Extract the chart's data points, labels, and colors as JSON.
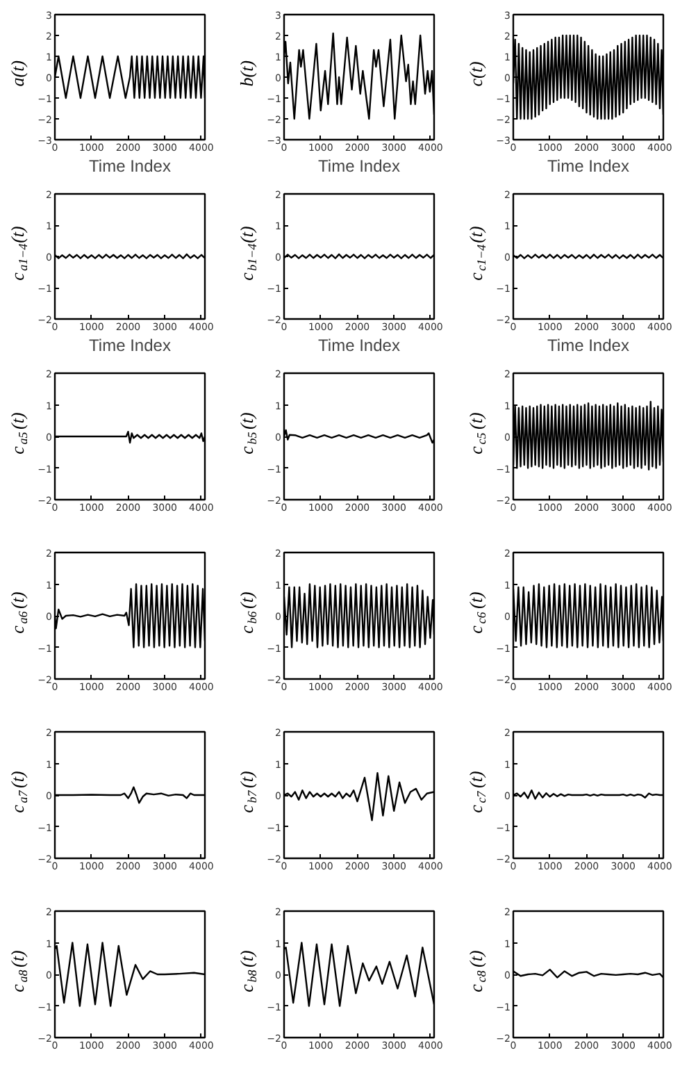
{
  "chart_data": [
    {
      "type": "line",
      "ylabel": "a(t)",
      "xlabel": "Time Index",
      "color": "#000000",
      "xlim": [
        0,
        4096
      ],
      "xticks": [
        0,
        1000,
        2000,
        3000,
        4000
      ],
      "ylim": [
        -3,
        3
      ],
      "yticks": [
        {
          "value": -3,
          "label": "−3"
        },
        {
          "value": -2,
          "label": "−2"
        },
        {
          "value": -1,
          "label": "−1"
        },
        0,
        1,
        2,
        3
      ],
      "x": [
        0,
        100,
        300,
        500,
        700,
        900,
        1100,
        1300,
        1500,
        1720,
        1930,
        2048,
        2100,
        2170,
        2240,
        2310,
        2380,
        2450,
        2520,
        2590,
        2660,
        2730,
        2800,
        2870,
        2940,
        3010,
        3080,
        3150,
        3220,
        3290,
        3360,
        3430,
        3500,
        3570,
        3640,
        3710,
        3780,
        3850,
        3920,
        3990,
        4060,
        4096
      ],
      "values": [
        0,
        1,
        -1,
        1,
        -1,
        1,
        -1,
        1,
        -1,
        1,
        -1,
        0,
        1,
        -1,
        1,
        -1,
        1,
        -1,
        1,
        -1,
        1,
        -1,
        1,
        -1,
        1,
        -1,
        1,
        -1,
        1,
        -1,
        1,
        -1,
        1,
        -1,
        1,
        -1,
        1,
        -1,
        1,
        -1,
        1,
        -1
      ]
    },
    {
      "type": "line",
      "ylabel": "b(t)",
      "xlabel": "Time Index",
      "color": "#000000",
      "xlim": [
        0,
        4096
      ],
      "xticks": [
        0,
        1000,
        2000,
        3000,
        4000
      ],
      "ylim": [
        -3,
        3
      ],
      "yticks": [
        {
          "value": -3,
          "label": "−3"
        },
        {
          "value": -2,
          "label": "−2"
        },
        {
          "value": -1,
          "label": "−1"
        },
        0,
        1,
        2,
        3
      ],
      "x": [
        0,
        40,
        110,
        170,
        280,
        410,
        460,
        520,
        690,
        880,
        1000,
        1120,
        1200,
        1340,
        1450,
        1500,
        1560,
        1720,
        1850,
        1960,
        2080,
        2150,
        2320,
        2450,
        2510,
        2580,
        2720,
        2900,
        3020,
        3200,
        3330,
        3390,
        3460,
        3520,
        3580,
        3720,
        3850,
        3920,
        3980,
        4040,
        4096
      ],
      "values": [
        1.0,
        1.7,
        -0.3,
        0.7,
        -2.0,
        1.3,
        0.5,
        1.3,
        -2.0,
        1.6,
        -1.6,
        0.3,
        -1.3,
        2.1,
        -1.3,
        0.0,
        -1.3,
        1.9,
        -0.6,
        1.5,
        -0.8,
        0.3,
        -2.0,
        1.3,
        0.5,
        1.3,
        -1.4,
        1.8,
        -2.0,
        2.0,
        -0.2,
        0.6,
        -1.3,
        -0.2,
        -1.3,
        2.0,
        -0.8,
        0.3,
        -0.7,
        0.3,
        -1.8
      ]
    },
    {
      "type": "line",
      "ylabel": "c(t)",
      "xlabel": "Time Index",
      "color": "#000000",
      "xlim": [
        0,
        4096
      ],
      "xticks": [
        0,
        1000,
        2000,
        3000,
        4000
      ],
      "ylim": [
        -3,
        3
      ],
      "yticks": [
        {
          "value": -3,
          "label": "−3"
        },
        {
          "value": -2,
          "label": "−2"
        },
        {
          "value": -1,
          "label": "−1"
        },
        0,
        1,
        2,
        3
      ],
      "x": [
        0,
        50,
        100,
        150,
        200,
        250,
        300,
        350,
        400,
        450,
        500,
        550,
        600,
        650,
        700,
        750,
        800,
        850,
        900,
        950,
        1000,
        1050,
        1100,
        1150,
        1200,
        1250,
        1300,
        1350,
        1400,
        1450,
        1500,
        1550,
        1600,
        1650,
        1700,
        1750,
        1800,
        1850,
        1900,
        1950,
        2000,
        2050,
        2100,
        2150,
        2200,
        2250,
        2300,
        2350,
        2400,
        2450,
        2500,
        2550,
        2600,
        2650,
        2700,
        2750,
        2800,
        2850,
        2900,
        2950,
        3000,
        3050,
        3100,
        3150,
        3200,
        3250,
        3300,
        3350,
        3400,
        3450,
        3500,
        3550,
        3600,
        3650,
        3700,
        3750,
        3800,
        3850,
        3900,
        3950,
        4000,
        4050,
        4096
      ],
      "values": [
        -0.3,
        1.8,
        -2.0,
        1.6,
        -2.0,
        1.4,
        -2.0,
        1.3,
        -2.0,
        1.2,
        -2.0,
        1.3,
        -1.9,
        1.4,
        -1.8,
        1.5,
        -1.6,
        1.6,
        -1.5,
        1.7,
        -1.3,
        1.8,
        -1.2,
        1.9,
        -1.1,
        1.9,
        -1.0,
        2.0,
        -1.0,
        2.0,
        -1.0,
        2.0,
        -1.1,
        2.0,
        -1.2,
        2.0,
        -1.4,
        1.9,
        -1.5,
        1.7,
        -1.7,
        1.5,
        -1.8,
        1.3,
        -1.9,
        1.1,
        -2.0,
        1.0,
        -2.0,
        1.0,
        -2.0,
        1.1,
        -2.0,
        1.2,
        -2.0,
        1.3,
        -1.9,
        1.5,
        -1.8,
        1.6,
        -1.7,
        1.7,
        -1.5,
        1.8,
        -1.3,
        1.9,
        -1.2,
        2.0,
        -1.1,
        2.0,
        -1.0,
        2.0,
        -1.0,
        2.0,
        -1.1,
        1.9,
        -1.2,
        1.8,
        -1.3,
        1.6,
        -1.5,
        1.3,
        -1.8
      ]
    },
    {
      "type": "line",
      "ylabel": "c$_{a1−4}$(t)",
      "xlabel": "Time Index",
      "color": "#000000",
      "xlim": [
        0,
        4096
      ],
      "xticks": [
        0,
        1000,
        2000,
        3000,
        4000
      ],
      "ylim": [
        -2,
        2
      ],
      "yticks": [
        {
          "value": -2,
          "label": "−2"
        },
        {
          "value": -1,
          "label": "−1"
        },
        0,
        1,
        2
      ],
      "x": [
        0,
        100,
        200,
        300,
        400,
        500,
        600,
        700,
        800,
        900,
        1000,
        1100,
        1200,
        1300,
        1400,
        1500,
        1600,
        1700,
        1800,
        1900,
        2000,
        2100,
        2200,
        2300,
        2400,
        2500,
        2600,
        2700,
        2800,
        2900,
        3000,
        3100,
        3200,
        3300,
        3400,
        3500,
        3600,
        3700,
        3800,
        3900,
        4000,
        4096
      ],
      "values": [
        0.05,
        -0.06,
        0.04,
        -0.05,
        0.06,
        -0.04,
        0.05,
        -0.06,
        0.05,
        -0.05,
        0.04,
        -0.06,
        0.05,
        -0.05,
        0.06,
        -0.04,
        0.05,
        -0.05,
        0.04,
        -0.06,
        0.05,
        -0.05,
        0.06,
        -0.05,
        0.04,
        -0.06,
        0.05,
        -0.04,
        0.05,
        -0.06,
        0.04,
        -0.05,
        0.06,
        -0.05,
        0.05,
        -0.06,
        0.07,
        -0.05,
        0.04,
        -0.06,
        0.05,
        -0.05
      ]
    },
    {
      "type": "line",
      "ylabel": "c$_{b1−4}$(t)",
      "xlabel": "Time Index",
      "color": "#000000",
      "xlim": [
        0,
        4096
      ],
      "xticks": [
        0,
        1000,
        2000,
        3000,
        4000
      ],
      "ylim": [
        -2,
        2
      ],
      "yticks": [
        {
          "value": -2,
          "label": "−2"
        },
        {
          "value": -1,
          "label": "−1"
        },
        0,
        1,
        2
      ],
      "x": [
        0,
        100,
        200,
        300,
        400,
        500,
        600,
        700,
        800,
        900,
        1000,
        1100,
        1200,
        1300,
        1400,
        1500,
        1600,
        1700,
        1800,
        1900,
        2000,
        2100,
        2200,
        2300,
        2400,
        2500,
        2600,
        2700,
        2800,
        2900,
        3000,
        3100,
        3200,
        3300,
        3400,
        3500,
        3600,
        3700,
        3800,
        3900,
        4000,
        4096
      ],
      "values": [
        -0.05,
        0.06,
        -0.04,
        0.05,
        -0.06,
        0.04,
        -0.05,
        0.06,
        -0.05,
        0.05,
        -0.04,
        0.06,
        -0.05,
        0.05,
        -0.06,
        0.07,
        -0.05,
        0.05,
        -0.04,
        0.06,
        -0.05,
        0.05,
        -0.06,
        0.05,
        -0.04,
        0.06,
        -0.05,
        0.04,
        -0.05,
        0.06,
        -0.04,
        0.05,
        -0.06,
        0.05,
        -0.05,
        0.06,
        -0.05,
        0.05,
        -0.04,
        0.06,
        -0.05,
        0.05
      ]
    },
    {
      "type": "line",
      "ylabel": "c$_{c1−4}$(t)",
      "xlabel": "Time Index",
      "color": "#000000",
      "xlim": [
        0,
        4096
      ],
      "xticks": [
        0,
        1000,
        2000,
        3000,
        4000
      ],
      "ylim": [
        -2,
        2
      ],
      "yticks": [
        {
          "value": -2,
          "label": "−2"
        },
        {
          "value": -1,
          "label": "−1"
        },
        0,
        1,
        2
      ],
      "x": [
        0,
        100,
        200,
        300,
        400,
        500,
        600,
        700,
        800,
        900,
        1000,
        1100,
        1200,
        1300,
        1400,
        1500,
        1600,
        1700,
        1800,
        1900,
        2000,
        2100,
        2200,
        2300,
        2400,
        2500,
        2600,
        2700,
        2800,
        2900,
        3000,
        3100,
        3200,
        3300,
        3400,
        3500,
        3600,
        3700,
        3800,
        3900,
        4000,
        4096
      ],
      "values": [
        0.04,
        -0.05,
        0.05,
        -0.06,
        0.04,
        -0.05,
        0.06,
        -0.04,
        0.05,
        -0.05,
        0.06,
        -0.05,
        0.05,
        -0.06,
        0.05,
        -0.04,
        0.05,
        -0.06,
        0.04,
        -0.05,
        0.05,
        -0.06,
        0.06,
        -0.05,
        0.05,
        -0.04,
        0.06,
        -0.05,
        0.05,
        -0.06,
        0.04,
        -0.05,
        0.05,
        -0.06,
        0.06,
        -0.05,
        0.05,
        -0.04,
        0.06,
        -0.05,
        0.05,
        -0.05
      ]
    },
    {
      "type": "line",
      "ylabel": "c$_{a5}$(t)",
      "color": "#000000",
      "xlim": [
        0,
        4096
      ],
      "xticks": [
        0,
        1000,
        2000,
        3000,
        4000
      ],
      "ylim": [
        -2,
        2
      ],
      "yticks": [
        {
          "value": -2,
          "label": "−2"
        },
        {
          "value": -1,
          "label": "−1"
        },
        0,
        1,
        2
      ],
      "x": [
        0,
        500,
        1000,
        1500,
        1950,
        2000,
        2050,
        2100,
        2150,
        2250,
        2350,
        2450,
        2550,
        2650,
        2750,
        2850,
        2950,
        3050,
        3150,
        3250,
        3350,
        3450,
        3550,
        3650,
        3750,
        3850,
        3950,
        4000,
        4050,
        4096
      ],
      "values": [
        0,
        0,
        0,
        0,
        0,
        0.15,
        -0.2,
        0.1,
        -0.05,
        0.05,
        -0.05,
        0.05,
        -0.05,
        0.05,
        -0.05,
        0.05,
        -0.05,
        0.05,
        -0.05,
        0.05,
        -0.05,
        0.05,
        -0.05,
        0.05,
        -0.05,
        0.05,
        -0.05,
        0.1,
        -0.15,
        0
      ]
    },
    {
      "type": "line",
      "ylabel": "c$_{b5}$(t)",
      "color": "#000000",
      "xlim": [
        0,
        4096
      ],
      "xticks": [
        0,
        1000,
        2000,
        3000,
        4000
      ],
      "ylim": [
        -2,
        2
      ],
      "yticks": [
        {
          "value": -2,
          "label": "−2"
        },
        {
          "value": -1,
          "label": "−1"
        },
        0,
        1,
        2
      ],
      "x": [
        0,
        50,
        100,
        150,
        300,
        500,
        700,
        900,
        1100,
        1300,
        1500,
        1700,
        1900,
        2100,
        2300,
        2500,
        2700,
        2900,
        3100,
        3300,
        3500,
        3700,
        3900,
        3950,
        4050,
        4096
      ],
      "values": [
        0,
        0.2,
        -0.1,
        0.05,
        0.04,
        -0.04,
        0.04,
        -0.04,
        0.04,
        -0.04,
        0.04,
        -0.04,
        0.04,
        -0.04,
        0.04,
        -0.04,
        0.04,
        -0.04,
        0.04,
        -0.04,
        0.04,
        -0.04,
        0.04,
        0.1,
        -0.2,
        -0.1
      ]
    },
    {
      "type": "line",
      "ylabel": "c$_{c5}$(t)",
      "color": "#000000",
      "xlim": [
        0,
        4096
      ],
      "xticks": [
        0,
        1000,
        2000,
        3000,
        4000
      ],
      "ylim": [
        -2,
        2
      ],
      "yticks": [
        {
          "value": -2,
          "label": "−2"
        },
        {
          "value": -1,
          "label": "−1"
        },
        0,
        1,
        2
      ],
      "x": [
        0,
        50,
        100,
        150,
        200,
        250,
        300,
        350,
        400,
        450,
        500,
        550,
        600,
        650,
        700,
        750,
        800,
        850,
        900,
        950,
        1000,
        1050,
        1100,
        1150,
        1200,
        1250,
        1300,
        1350,
        1400,
        1450,
        1500,
        1550,
        1600,
        1650,
        1700,
        1750,
        1800,
        1850,
        1900,
        1950,
        2000,
        2050,
        2100,
        2150,
        2200,
        2250,
        2300,
        2350,
        2400,
        2450,
        2500,
        2550,
        2600,
        2650,
        2700,
        2750,
        2800,
        2850,
        2900,
        2950,
        3000,
        3050,
        3100,
        3150,
        3200,
        3250,
        3300,
        3350,
        3400,
        3450,
        3500,
        3550,
        3600,
        3650,
        3700,
        3750,
        3800,
        3850,
        3900,
        3950,
        4000,
        4050,
        4096
      ],
      "values": [
        -0.9,
        0.95,
        -1.0,
        0.9,
        -0.95,
        0.95,
        -0.9,
        0.9,
        -1.0,
        0.95,
        -0.95,
        0.9,
        -0.9,
        0.95,
        -0.95,
        1.0,
        -1.0,
        0.95,
        -0.9,
        1.0,
        -0.95,
        0.95,
        -1.0,
        1.0,
        -0.9,
        0.95,
        -0.95,
        1.0,
        -1.0,
        0.95,
        -0.9,
        1.0,
        -0.95,
        0.95,
        -0.9,
        1.0,
        -1.0,
        0.95,
        -0.95,
        1.0,
        -0.9,
        1.05,
        -1.0,
        0.95,
        -0.95,
        1.0,
        -0.9,
        0.95,
        -1.0,
        1.0,
        -0.95,
        0.95,
        -0.9,
        1.0,
        -1.0,
        0.95,
        -0.95,
        1.05,
        -0.9,
        0.95,
        -1.0,
        1.0,
        -0.95,
        0.9,
        -0.9,
        0.95,
        -1.0,
        0.9,
        -0.95,
        0.95,
        -1.0,
        0.9,
        -0.9,
        0.95,
        -1.05,
        1.1,
        -0.95,
        0.9,
        -1.0,
        0.95,
        -0.9,
        0.85,
        -0.8
      ]
    },
    {
      "type": "line",
      "ylabel": "c$_{a6}$(t)",
      "color": "#000000",
      "xlim": [
        0,
        4096
      ],
      "xticks": [
        0,
        1000,
        2000,
        3000,
        4000
      ],
      "ylim": [
        -2,
        2
      ],
      "yticks": [
        {
          "value": -2,
          "label": "−2"
        },
        {
          "value": -1,
          "label": "−1"
        },
        0,
        1,
        2
      ],
      "x": [
        0,
        30,
        100,
        200,
        300,
        500,
        700,
        900,
        1100,
        1300,
        1500,
        1700,
        1900,
        1950,
        2020,
        2080,
        2150,
        2220,
        2290,
        2360,
        2430,
        2500,
        2570,
        2640,
        2710,
        2780,
        2850,
        2920,
        2990,
        3060,
        3130,
        3200,
        3270,
        3340,
        3410,
        3480,
        3550,
        3620,
        3690,
        3760,
        3830,
        3900,
        3970,
        4040,
        4096
      ],
      "values": [
        0,
        -0.4,
        0.2,
        -0.1,
        0.0,
        0.02,
        -0.03,
        0.03,
        -0.02,
        0.05,
        -0.02,
        0.03,
        0.0,
        0.1,
        -0.3,
        0.85,
        -1.0,
        1.0,
        -0.95,
        0.95,
        -1.0,
        0.95,
        -0.95,
        1.0,
        -1.0,
        0.95,
        -0.95,
        1.0,
        -1.0,
        0.95,
        -0.95,
        1.0,
        -1.0,
        0.95,
        -0.95,
        1.0,
        -1.0,
        0.95,
        -0.95,
        1.0,
        -1.0,
        0.95,
        -1.0,
        0.85,
        -0.8
      ]
    },
    {
      "type": "line",
      "ylabel": "c$_{b6}$(t)",
      "color": "#000000",
      "xlim": [
        0,
        4096
      ],
      "xticks": [
        0,
        1000,
        2000,
        3000,
        4000
      ],
      "ylim": [
        -2,
        2
      ],
      "yticks": [
        {
          "value": -2,
          "label": "−2"
        },
        {
          "value": -1,
          "label": "−1"
        },
        0,
        1,
        2
      ],
      "x": [
        0,
        70,
        140,
        210,
        280,
        350,
        420,
        490,
        560,
        630,
        700,
        770,
        840,
        910,
        980,
        1050,
        1120,
        1190,
        1260,
        1330,
        1400,
        1470,
        1540,
        1610,
        1680,
        1750,
        1820,
        1890,
        1960,
        2030,
        2100,
        2170,
        2240,
        2310,
        2380,
        2450,
        2520,
        2590,
        2660,
        2730,
        2800,
        2870,
        2940,
        3010,
        3080,
        3150,
        3220,
        3290,
        3360,
        3430,
        3500,
        3570,
        3640,
        3710,
        3780,
        3850,
        3920,
        3990,
        4060,
        4096
      ],
      "values": [
        0.6,
        -0.6,
        0.9,
        -1.0,
        0.9,
        -0.8,
        0.9,
        -0.85,
        0.7,
        -0.9,
        1.0,
        -0.8,
        0.95,
        -1.0,
        0.9,
        -0.95,
        0.95,
        -0.9,
        1.0,
        -0.95,
        0.95,
        -1.0,
        1.0,
        -0.95,
        0.95,
        -1.0,
        0.9,
        -0.95,
        1.0,
        -1.0,
        0.95,
        -0.95,
        1.0,
        -1.0,
        0.95,
        -0.95,
        0.9,
        -1.0,
        0.95,
        -0.95,
        1.0,
        -1.0,
        0.9,
        -0.95,
        0.95,
        -1.0,
        0.9,
        -0.95,
        1.0,
        -1.0,
        0.9,
        -0.95,
        0.95,
        -1.0,
        0.8,
        -0.9,
        0.6,
        -0.7,
        0.5,
        -0.6
      ]
    },
    {
      "type": "line",
      "ylabel": "c$_{c6}$(t)",
      "color": "#000000",
      "xlim": [
        0,
        4096
      ],
      "xticks": [
        0,
        1000,
        2000,
        3000,
        4000
      ],
      "ylim": [
        -2,
        2
      ],
      "yticks": [
        {
          "value": -2,
          "label": "−2"
        },
        {
          "value": -1,
          "label": "−1"
        },
        0,
        1,
        2
      ],
      "x": [
        0,
        70,
        140,
        210,
        280,
        350,
        420,
        490,
        560,
        630,
        700,
        770,
        840,
        910,
        980,
        1050,
        1120,
        1190,
        1260,
        1330,
        1400,
        1470,
        1540,
        1610,
        1680,
        1750,
        1820,
        1890,
        1960,
        2030,
        2100,
        2170,
        2240,
        2310,
        2380,
        2450,
        2520,
        2590,
        2660,
        2730,
        2800,
        2870,
        2940,
        3010,
        3080,
        3150,
        3220,
        3290,
        3360,
        3430,
        3500,
        3570,
        3640,
        3710,
        3780,
        3850,
        3920,
        3990,
        4060,
        4096
      ],
      "values": [
        0.85,
        -0.8,
        0.9,
        -0.95,
        0.9,
        -0.9,
        0.75,
        -0.85,
        0.95,
        -0.9,
        1.0,
        -0.95,
        0.9,
        -1.0,
        0.95,
        -0.95,
        1.0,
        -1.0,
        0.95,
        -0.95,
        1.0,
        -1.0,
        0.95,
        -0.95,
        1.0,
        -1.0,
        0.95,
        -0.95,
        1.0,
        -1.0,
        0.95,
        -0.95,
        0.9,
        -1.0,
        1.0,
        -0.95,
        0.95,
        -1.0,
        0.9,
        -0.95,
        1.0,
        -1.0,
        0.95,
        -0.95,
        0.9,
        -1.0,
        0.95,
        -0.95,
        1.0,
        -1.0,
        0.9,
        -0.95,
        0.95,
        -1.0,
        0.9,
        -0.9,
        0.8,
        -0.85,
        0.6,
        -0.8
      ]
    },
    {
      "type": "line",
      "ylabel": "c$_{a7}$(t)",
      "color": "#000000",
      "xlim": [
        0,
        4096
      ],
      "xticks": [
        0,
        1000,
        2000,
        3000,
        4000
      ],
      "ylim": [
        -2,
        2
      ],
      "yticks": [
        {
          "value": -2,
          "label": "−2"
        },
        {
          "value": -1,
          "label": "−1"
        },
        0,
        1,
        2
      ],
      "x": [
        0,
        500,
        1000,
        1500,
        1800,
        1900,
        2000,
        2080,
        2150,
        2230,
        2300,
        2400,
        2500,
        2700,
        2900,
        3100,
        3300,
        3500,
        3600,
        3700,
        3800,
        4096
      ],
      "values": [
        0,
        0,
        0.01,
        0,
        0,
        0.05,
        -0.1,
        0.05,
        0.25,
        0.0,
        -0.25,
        -0.05,
        0.05,
        0.02,
        0.05,
        -0.02,
        0.02,
        0.0,
        -0.1,
        0.05,
        0.0,
        0.0
      ]
    },
    {
      "type": "line",
      "ylabel": "c$_{b7}$(t)",
      "color": "#000000",
      "xlim": [
        0,
        4096
      ],
      "xticks": [
        0,
        1000,
        2000,
        3000,
        4000
      ],
      "ylim": [
        -2,
        2
      ],
      "yticks": [
        {
          "value": -2,
          "label": "−2"
        },
        {
          "value": -1,
          "label": "−1"
        },
        0,
        1,
        2
      ],
      "x": [
        0,
        100,
        200,
        300,
        400,
        500,
        600,
        700,
        800,
        900,
        1000,
        1100,
        1200,
        1300,
        1400,
        1500,
        1600,
        1700,
        1800,
        1900,
        2000,
        2200,
        2400,
        2550,
        2700,
        2850,
        3000,
        3150,
        3300,
        3450,
        3600,
        3750,
        3900,
        4096
      ],
      "values": [
        0,
        0.05,
        -0.05,
        0.1,
        -0.15,
        0.15,
        -0.1,
        0.1,
        -0.05,
        0.05,
        -0.05,
        0.05,
        -0.05,
        0.05,
        -0.05,
        0.1,
        -0.1,
        0.05,
        -0.05,
        0.15,
        -0.2,
        0.55,
        -0.8,
        0.7,
        -0.65,
        0.6,
        -0.5,
        0.4,
        -0.25,
        0.1,
        0.2,
        -0.15,
        0.05,
        0.1
      ]
    },
    {
      "type": "line",
      "ylabel": "c$_{c7}$(t)",
      "color": "#000000",
      "xlim": [
        0,
        4096
      ],
      "xticks": [
        0,
        1000,
        2000,
        3000,
        4000
      ],
      "ylim": [
        -2,
        2
      ],
      "yticks": [
        {
          "value": -2,
          "label": "−2"
        },
        {
          "value": -1,
          "label": "−1"
        },
        0,
        1,
        2
      ],
      "x": [
        0,
        100,
        200,
        300,
        400,
        500,
        600,
        700,
        800,
        900,
        1000,
        1100,
        1200,
        1300,
        1400,
        1500,
        1600,
        1700,
        1800,
        1900,
        2000,
        2100,
        2200,
        2300,
        2400,
        2500,
        2600,
        2700,
        2800,
        2900,
        3000,
        3100,
        3200,
        3300,
        3400,
        3500,
        3600,
        3700,
        3800,
        3900,
        4000,
        4096
      ],
      "values": [
        0,
        0.05,
        -0.05,
        0.08,
        -0.1,
        0.15,
        -0.12,
        0.08,
        -0.08,
        0.06,
        -0.05,
        0.04,
        -0.04,
        0.03,
        -0.03,
        0.02,
        0,
        0,
        0,
        0,
        0.02,
        -0.02,
        0.02,
        -0.02,
        0.02,
        0,
        0,
        0,
        0,
        0,
        0.02,
        -0.02,
        0.02,
        -0.02,
        0.02,
        0,
        -0.08,
        0.05,
        0,
        0.02,
        0,
        0
      ]
    },
    {
      "type": "line",
      "ylabel": "c$_{a8}$(t)",
      "color": "#000000",
      "xlim": [
        0,
        4096
      ],
      "xticks": [
        0,
        1000,
        2000,
        3000,
        4000
      ],
      "ylim": [
        -2,
        2
      ],
      "yticks": [
        {
          "value": -2,
          "label": "−2"
        },
        {
          "value": -1,
          "label": "−1"
        },
        0,
        1,
        2
      ],
      "x": [
        0,
        50,
        250,
        480,
        680,
        890,
        1100,
        1300,
        1520,
        1740,
        1960,
        2200,
        2400,
        2600,
        2800,
        3000,
        3400,
        3800,
        4096
      ],
      "values": [
        0.8,
        0.9,
        -0.9,
        1.0,
        -1.0,
        0.95,
        -0.95,
        1.0,
        -1.0,
        0.9,
        -0.65,
        0.3,
        -0.15,
        0.1,
        0.0,
        0.0,
        0.02,
        0.05,
        0.0
      ]
    },
    {
      "type": "line",
      "ylabel": "c$_{b8}$(t)",
      "color": "#000000",
      "xlim": [
        0,
        4096
      ],
      "xticks": [
        0,
        1000,
        2000,
        3000,
        4000
      ],
      "ylim": [
        -2,
        2
      ],
      "yticks": [
        {
          "value": -2,
          "label": "−2"
        },
        {
          "value": -1,
          "label": "−1"
        },
        0,
        1,
        2
      ],
      "x": [
        0,
        50,
        250,
        480,
        680,
        890,
        1100,
        1300,
        1520,
        1740,
        1960,
        2150,
        2320,
        2520,
        2680,
        2880,
        3100,
        3350,
        3580,
        3780,
        4096
      ],
      "values": [
        0.8,
        0.85,
        -0.9,
        1.0,
        -1.0,
        0.95,
        -0.95,
        0.95,
        -1.0,
        0.9,
        -0.6,
        0.35,
        -0.2,
        0.25,
        -0.3,
        0.4,
        -0.45,
        0.6,
        -0.7,
        0.85,
        -0.95
      ]
    },
    {
      "type": "line",
      "ylabel": "c$_{c8}$(t)",
      "color": "#000000",
      "xlim": [
        0,
        4096
      ],
      "xticks": [
        0,
        1000,
        2000,
        3000,
        4000
      ],
      "ylim": [
        -2,
        2
      ],
      "yticks": [
        {
          "value": -2,
          "label": "−2"
        },
        {
          "value": -1,
          "label": "−1"
        },
        0,
        1,
        2
      ],
      "x": [
        0,
        200,
        400,
        600,
        800,
        1000,
        1200,
        1400,
        1600,
        1800,
        2000,
        2200,
        2400,
        2600,
        2800,
        3000,
        3200,
        3400,
        3600,
        3800,
        4000,
        4096
      ],
      "values": [
        0.1,
        -0.05,
        0.0,
        0.02,
        -0.03,
        0.15,
        -0.1,
        0.1,
        -0.05,
        0.05,
        0.08,
        -0.05,
        0.02,
        0.0,
        -0.02,
        0.0,
        0.02,
        0.0,
        0.05,
        -0.02,
        0.02,
        -0.1
      ]
    }
  ]
}
